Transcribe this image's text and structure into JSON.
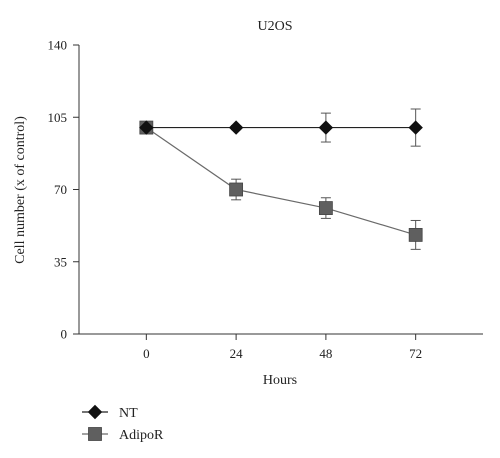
{
  "chart_data": {
    "type": "line",
    "title": "U2OS",
    "xlabel": "Hours",
    "ylabel": "Cell number (x of control)",
    "x": [
      0,
      24,
      48,
      72
    ],
    "x_tick_labels": [
      "0",
      "24",
      "48",
      "72"
    ],
    "xlim": [
      -18,
      90
    ],
    "ylim": [
      0,
      140
    ],
    "y_ticks": [
      0,
      35,
      70,
      105,
      140
    ],
    "grid": false,
    "legend_position": "bottom-left",
    "series": [
      {
        "name": "NT",
        "marker": "diamond",
        "color": "#111111",
        "values": [
          100,
          100,
          100,
          100
        ],
        "errors": [
          0,
          1,
          7,
          9
        ]
      },
      {
        "name": "AdipoR",
        "marker": "square",
        "color": "#5f5f5f",
        "values": [
          100,
          70,
          61,
          48
        ],
        "errors": [
          0,
          5,
          5,
          7
        ]
      }
    ]
  }
}
